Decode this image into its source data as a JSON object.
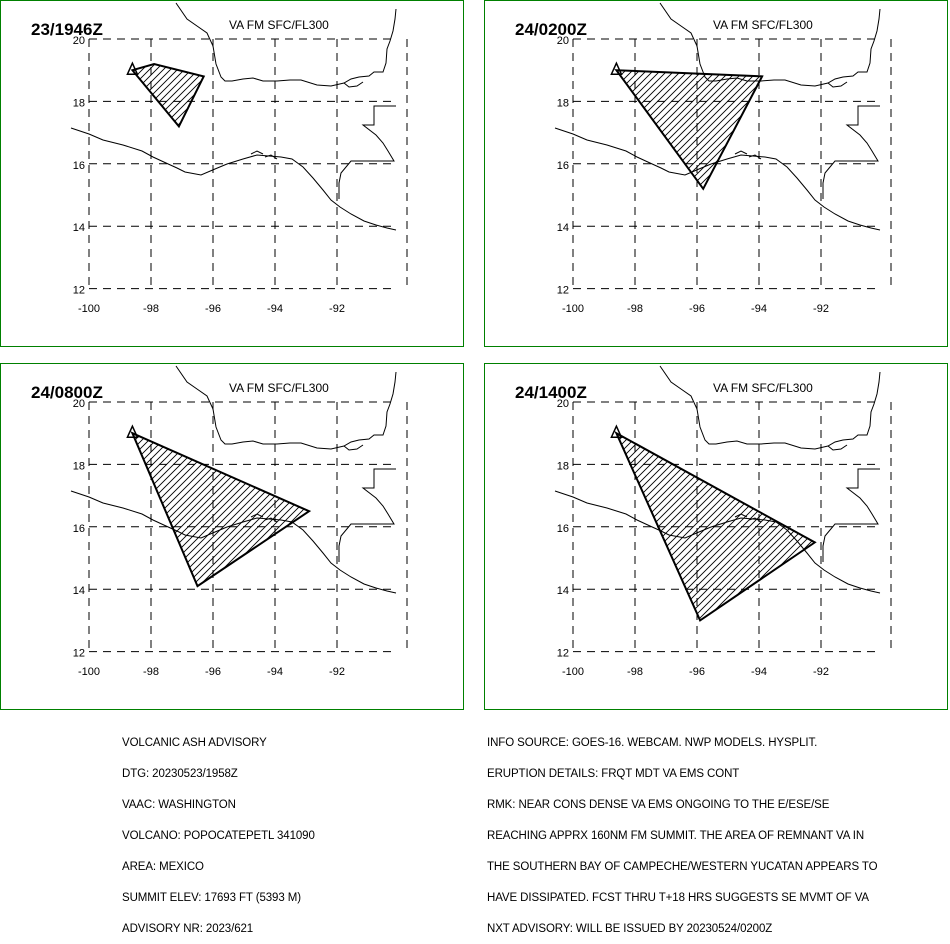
{
  "panels": [
    {
      "time_label": "23/1946Z",
      "level_label": "VA FM SFC/FL300",
      "ash_area": [
        [
          -98.6,
          19.0
        ],
        [
          -97.9,
          19.2
        ],
        [
          -96.3,
          18.8
        ],
        [
          -97.1,
          17.2
        ]
      ]
    },
    {
      "time_label": "24/0200Z",
      "level_label": "VA FM SFC/FL300",
      "ash_area": [
        [
          -98.6,
          19.0
        ],
        [
          -93.9,
          18.8
        ],
        [
          -95.8,
          15.2
        ]
      ]
    },
    {
      "time_label": "24/0800Z",
      "level_label": "VA FM SFC/FL300",
      "ash_area": [
        [
          -98.6,
          19.0
        ],
        [
          -92.9,
          16.5
        ],
        [
          -96.5,
          14.1
        ]
      ]
    },
    {
      "time_label": "24/1400Z",
      "level_label": "VA FM SFC/FL300",
      "ash_area": [
        [
          -98.6,
          19.0
        ],
        [
          -92.2,
          15.5
        ],
        [
          -95.9,
          13.0
        ]
      ]
    }
  ],
  "map": {
    "lat_ticks": [
      "20",
      "18",
      "16",
      "14",
      "12"
    ],
    "lon_ticks": [
      "-100",
      "-98",
      "-96",
      "-94",
      "-92"
    ],
    "volcano_marker": {
      "lon": -98.6,
      "lat": 19.0
    },
    "lat_range": [
      12,
      20
    ],
    "lon_range": [
      -100,
      -90
    ]
  },
  "advisory": {
    "lines": [
      "VOLCANIC ASH ADVISORY",
      "DTG: 20230523/1958Z",
      "VAAC: WASHINGTON",
      "VOLCANO: POPOCATEPETL 341090",
      "AREA: MEXICO",
      "SUMMIT ELEV: 17693 FT (5393 M)",
      "ADVISORY NR: 2023/621"
    ]
  },
  "remarks": {
    "lines": [
      "INFO SOURCE: GOES-16. WEBCAM. NWP MODELS. HYSPLIT.",
      "ERUPTION DETAILS: FRQT MDT VA EMS CONT",
      "RMK: NEAR CONS DENSE VA EMS ONGOING TO THE E/ESE/SE",
      "REACHING APPRX 160NM FM SUMMIT. THE AREA OF REMNANT VA IN",
      "THE SOUTHERN BAY OF CAMPECHE/WESTERN YUCATAN APPEARS TO",
      "HAVE DISSIPATED. FCST THRU T+18 HRS SUGGESTS SE MVMT OF VA",
      "NXT ADVISORY: WILL BE ISSUED BY 20230524/0200Z"
    ]
  }
}
